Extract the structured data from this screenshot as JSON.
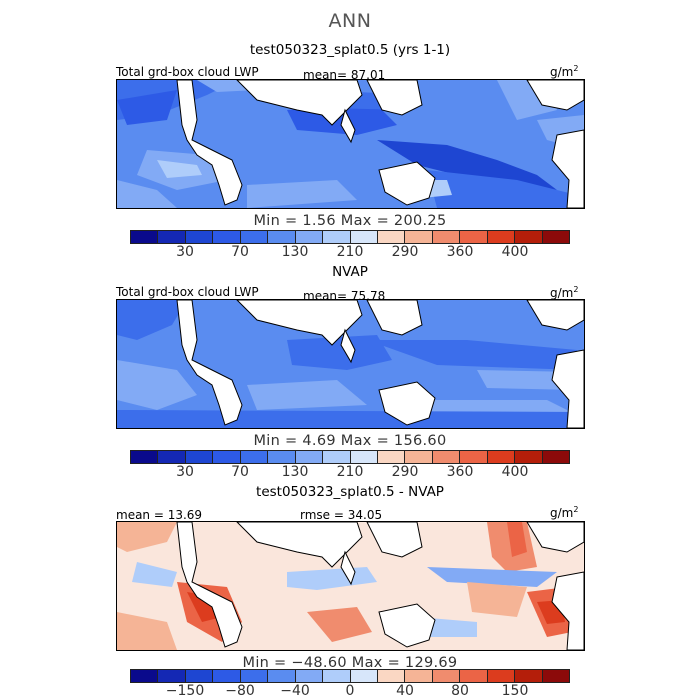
{
  "suptitle": "ANN",
  "panels": [
    {
      "title": "test050323_splat0.5 (yrs 1-1)",
      "left_label": "Total grd-box cloud LWP",
      "center_label": "mean=  87.01",
      "unit_base": "g/m",
      "unit_exp": "2",
      "minmax": "Min =   1.56  Max = 200.25"
    },
    {
      "title": "NVAP",
      "left_label": "Total grd-box cloud LWP",
      "center_label": "mean=  75.78",
      "unit_base": "g/m",
      "unit_exp": "2",
      "minmax": "Min =   4.69  Max = 156.60"
    },
    {
      "title": "test050323_splat0.5 - NVAP",
      "left_label": "mean =  13.69",
      "center_label": "rmse =  34.05",
      "unit_base": "g/m",
      "unit_exp": "2",
      "minmax": "Min = −48.60  Max = 129.69"
    }
  ],
  "colorbars": {
    "abs_colors": [
      "#0a0a8c",
      "#1428b4",
      "#1e46d2",
      "#2d5ae6",
      "#3c6eeb",
      "#5a8cf0",
      "#82aaf5",
      "#afcdfa",
      "#d7e6fa",
      "#fad7c3",
      "#f5b496",
      "#f08c6e",
      "#eb6446",
      "#dc3c1e",
      "#b41e0a",
      "#8c0a0a"
    ],
    "abs_ticks": [
      "30",
      "70",
      "130",
      "210",
      "290",
      "360",
      "400"
    ],
    "diff_colors": [
      "#0a0a8c",
      "#1428b4",
      "#1e46d2",
      "#2d5ae6",
      "#3c6eeb",
      "#5a8cf0",
      "#82aaf5",
      "#afcdfa",
      "#d7e6fa",
      "#fad7c3",
      "#f5b496",
      "#f08c6e",
      "#eb6446",
      "#dc3c1e",
      "#b41e0a",
      "#8c0a0a"
    ],
    "diff_ticks": [
      "−150",
      "−80",
      "−40",
      "0",
      "40",
      "80",
      "150"
    ]
  }
}
